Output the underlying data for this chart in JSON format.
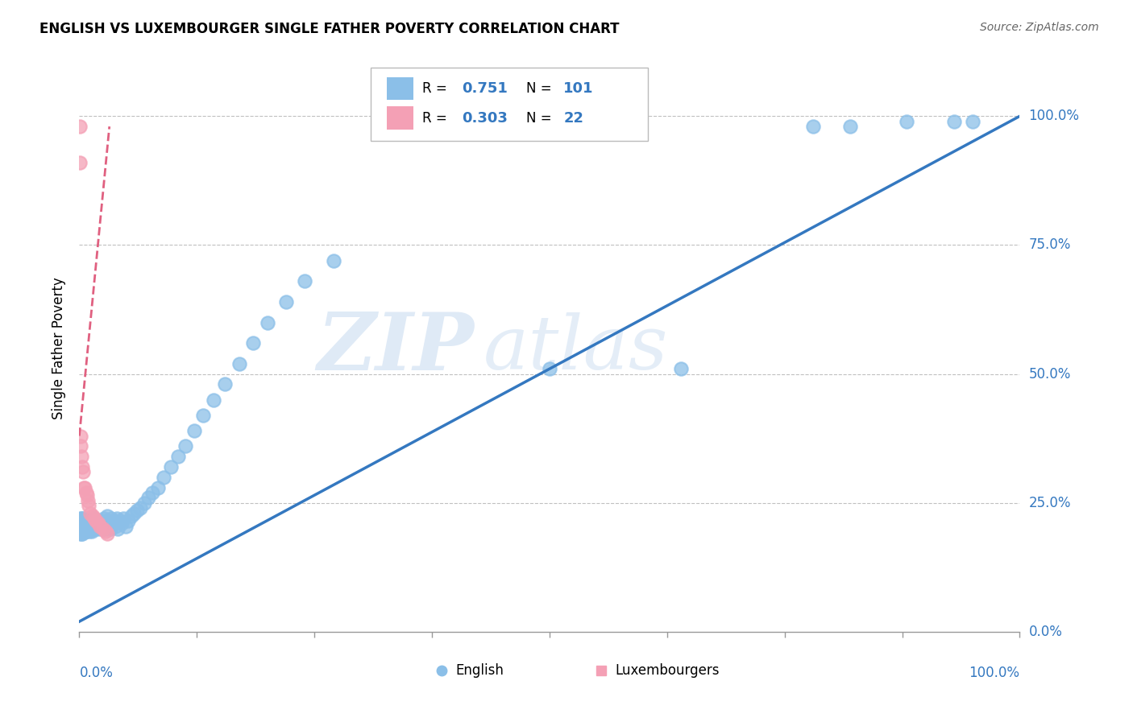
{
  "title": "ENGLISH VS LUXEMBOURGER SINGLE FATHER POVERTY CORRELATION CHART",
  "source": "Source: ZipAtlas.com",
  "ylabel": "Single Father Poverty",
  "ytick_labels": [
    "0.0%",
    "25.0%",
    "50.0%",
    "75.0%",
    "100.0%"
  ],
  "ytick_values": [
    0.0,
    0.25,
    0.5,
    0.75,
    1.0
  ],
  "watermark_zip": "ZIP",
  "watermark_atlas": "atlas",
  "english_R": 0.751,
  "english_N": 101,
  "luxembourger_R": 0.303,
  "luxembourger_N": 22,
  "english_color": "#8bbfe8",
  "english_line_color": "#3478c0",
  "luxembourger_color": "#f4a0b5",
  "luxembourger_line_color": "#e06080",
  "english_scatter_x": [
    0.001,
    0.001,
    0.001,
    0.002,
    0.002,
    0.002,
    0.002,
    0.003,
    0.003,
    0.003,
    0.003,
    0.004,
    0.004,
    0.004,
    0.004,
    0.005,
    0.005,
    0.005,
    0.005,
    0.006,
    0.006,
    0.006,
    0.007,
    0.007,
    0.007,
    0.008,
    0.008,
    0.008,
    0.009,
    0.009,
    0.01,
    0.01,
    0.01,
    0.011,
    0.011,
    0.012,
    0.012,
    0.013,
    0.013,
    0.014,
    0.015,
    0.015,
    0.016,
    0.016,
    0.017,
    0.018,
    0.019,
    0.02,
    0.021,
    0.022,
    0.023,
    0.024,
    0.025,
    0.026,
    0.027,
    0.028,
    0.029,
    0.03,
    0.031,
    0.032,
    0.033,
    0.034,
    0.036,
    0.037,
    0.038,
    0.04,
    0.041,
    0.043,
    0.045,
    0.047,
    0.049,
    0.052,
    0.055,
    0.058,
    0.061,
    0.065,
    0.069,
    0.073,
    0.078,
    0.084,
    0.09,
    0.097,
    0.105,
    0.113,
    0.122,
    0.132,
    0.143,
    0.155,
    0.17,
    0.185,
    0.2,
    0.22,
    0.24,
    0.27,
    0.5,
    0.64,
    0.78,
    0.82,
    0.88,
    0.93,
    0.95
  ],
  "english_scatter_y": [
    0.2,
    0.22,
    0.19,
    0.21,
    0.2,
    0.22,
    0.19,
    0.21,
    0.2,
    0.215,
    0.19,
    0.22,
    0.205,
    0.195,
    0.21,
    0.2,
    0.215,
    0.195,
    0.205,
    0.21,
    0.2,
    0.215,
    0.205,
    0.195,
    0.21,
    0.2,
    0.215,
    0.195,
    0.205,
    0.2,
    0.21,
    0.2,
    0.215,
    0.205,
    0.195,
    0.21,
    0.2,
    0.215,
    0.195,
    0.205,
    0.2,
    0.22,
    0.21,
    0.215,
    0.2,
    0.205,
    0.21,
    0.215,
    0.2,
    0.21,
    0.215,
    0.205,
    0.2,
    0.22,
    0.21,
    0.215,
    0.2,
    0.225,
    0.215,
    0.205,
    0.2,
    0.22,
    0.21,
    0.215,
    0.205,
    0.22,
    0.2,
    0.215,
    0.21,
    0.22,
    0.205,
    0.215,
    0.225,
    0.23,
    0.235,
    0.24,
    0.25,
    0.26,
    0.27,
    0.28,
    0.3,
    0.32,
    0.34,
    0.36,
    0.39,
    0.42,
    0.45,
    0.48,
    0.52,
    0.56,
    0.6,
    0.64,
    0.68,
    0.72,
    0.51,
    0.51,
    0.98,
    0.98,
    0.99,
    0.99,
    0.99
  ],
  "luxembourger_scatter_x": [
    0.0005,
    0.0008,
    0.001,
    0.001,
    0.002,
    0.003,
    0.004,
    0.005,
    0.006,
    0.007,
    0.008,
    0.009,
    0.01,
    0.012,
    0.014,
    0.016,
    0.018,
    0.02,
    0.022,
    0.025,
    0.028,
    0.03
  ],
  "luxembourger_scatter_y": [
    0.98,
    0.91,
    0.38,
    0.36,
    0.34,
    0.32,
    0.31,
    0.28,
    0.28,
    0.27,
    0.265,
    0.255,
    0.245,
    0.23,
    0.225,
    0.22,
    0.215,
    0.21,
    0.205,
    0.2,
    0.195,
    0.19
  ]
}
